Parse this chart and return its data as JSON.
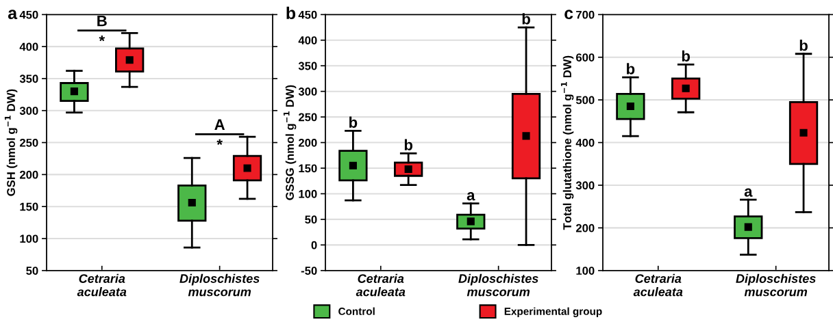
{
  "chart_data": [
    {
      "type": "box",
      "title": "a",
      "ylabel": "GSH (nmol g$^{−1}$ DW)",
      "categories": [
        "Cetraria\naculeata",
        "Diploschistes\nmuscorum"
      ],
      "ylim": [
        50,
        450
      ],
      "yticks": [
        50,
        100,
        150,
        200,
        250,
        300,
        350,
        400,
        450
      ],
      "grid": "y",
      "marker": "square",
      "series": [
        {
          "color": "#4cb848",
          "boxes": [
            {
              "low": 297,
              "q1": 315,
              "median": 330,
              "q3": 343,
              "high": 362
            },
            {
              "low": 86,
              "q1": 128,
              "median": 156,
              "q3": 183,
              "high": 226
            }
          ]
        },
        {
          "color": "#ed1c24",
          "boxes": [
            {
              "low": 337,
              "q1": 361,
              "median": 379,
              "q3": 397,
              "high": 421
            },
            {
              "low": 162,
              "q1": 191,
              "median": 210,
              "q3": 229,
              "high": 259
            }
          ]
        }
      ],
      "annotations": [
        "B\n*",
        "A\n*"
      ]
    },
    {
      "type": "box",
      "title": "b",
      "ylabel": "GSSG (nmol g$^{−1}$ DW)",
      "categories": [
        "Cetraria\naculeata",
        "Diploschistes\nmuscorum"
      ],
      "ylim": [
        -50,
        450
      ],
      "yticks": [
        -50,
        0,
        50,
        100,
        150,
        200,
        250,
        300,
        350,
        400,
        450
      ],
      "grid": "y",
      "marker": "square",
      "legend": "bottom",
      "series": [
        {
          "name": "Control",
          "color": "#4cb848",
          "boxes": [
            {
              "low": 87,
              "q1": 126,
              "median": 155,
              "q3": 184,
              "high": 223
            },
            {
              "low": 11,
              "q1": 32,
              "median": 46,
              "q3": 59,
              "high": 81
            }
          ]
        },
        {
          "name": "Experimental group",
          "color": "#ed1c24",
          "boxes": [
            {
              "low": 117,
              "q1": 135,
              "median": 148,
              "q3": 161,
              "high": 179
            },
            {
              "low": 0,
              "q1": 130,
              "median": 213,
              "q3": 295,
              "high": 425
            }
          ]
        }
      ],
      "annotations": [
        "b",
        "a",
        "b",
        "b"
      ]
    },
    {
      "type": "box",
      "title": "c",
      "ylabel": "Total glutathione (nmol g$^{−1}$ DW)",
      "categories": [
        "Cetraria\naculeata",
        "Diploschistes\nmuscorum"
      ],
      "ylim": [
        100,
        700
      ],
      "yticks": [
        100,
        200,
        300,
        400,
        500,
        600,
        700
      ],
      "grid": "y",
      "marker": "square",
      "series": [
        {
          "color": "#4cb848",
          "boxes": [
            {
              "low": 415,
              "q1": 455,
              "median": 485,
              "q3": 514,
              "high": 553
            },
            {
              "low": 137,
              "q1": 176,
              "median": 202,
              "q3": 227,
              "high": 266
            }
          ]
        },
        {
          "color": "#ed1c24",
          "boxes": [
            {
              "low": 471,
              "q1": 503,
              "median": 527,
              "q3": 550,
              "high": 583
            },
            {
              "low": 237,
              "q1": 350,
              "median": 423,
              "q3": 495,
              "high": 608
            }
          ]
        }
      ],
      "annotations": [
        "b",
        "a",
        "b",
        "b"
      ]
    }
  ]
}
